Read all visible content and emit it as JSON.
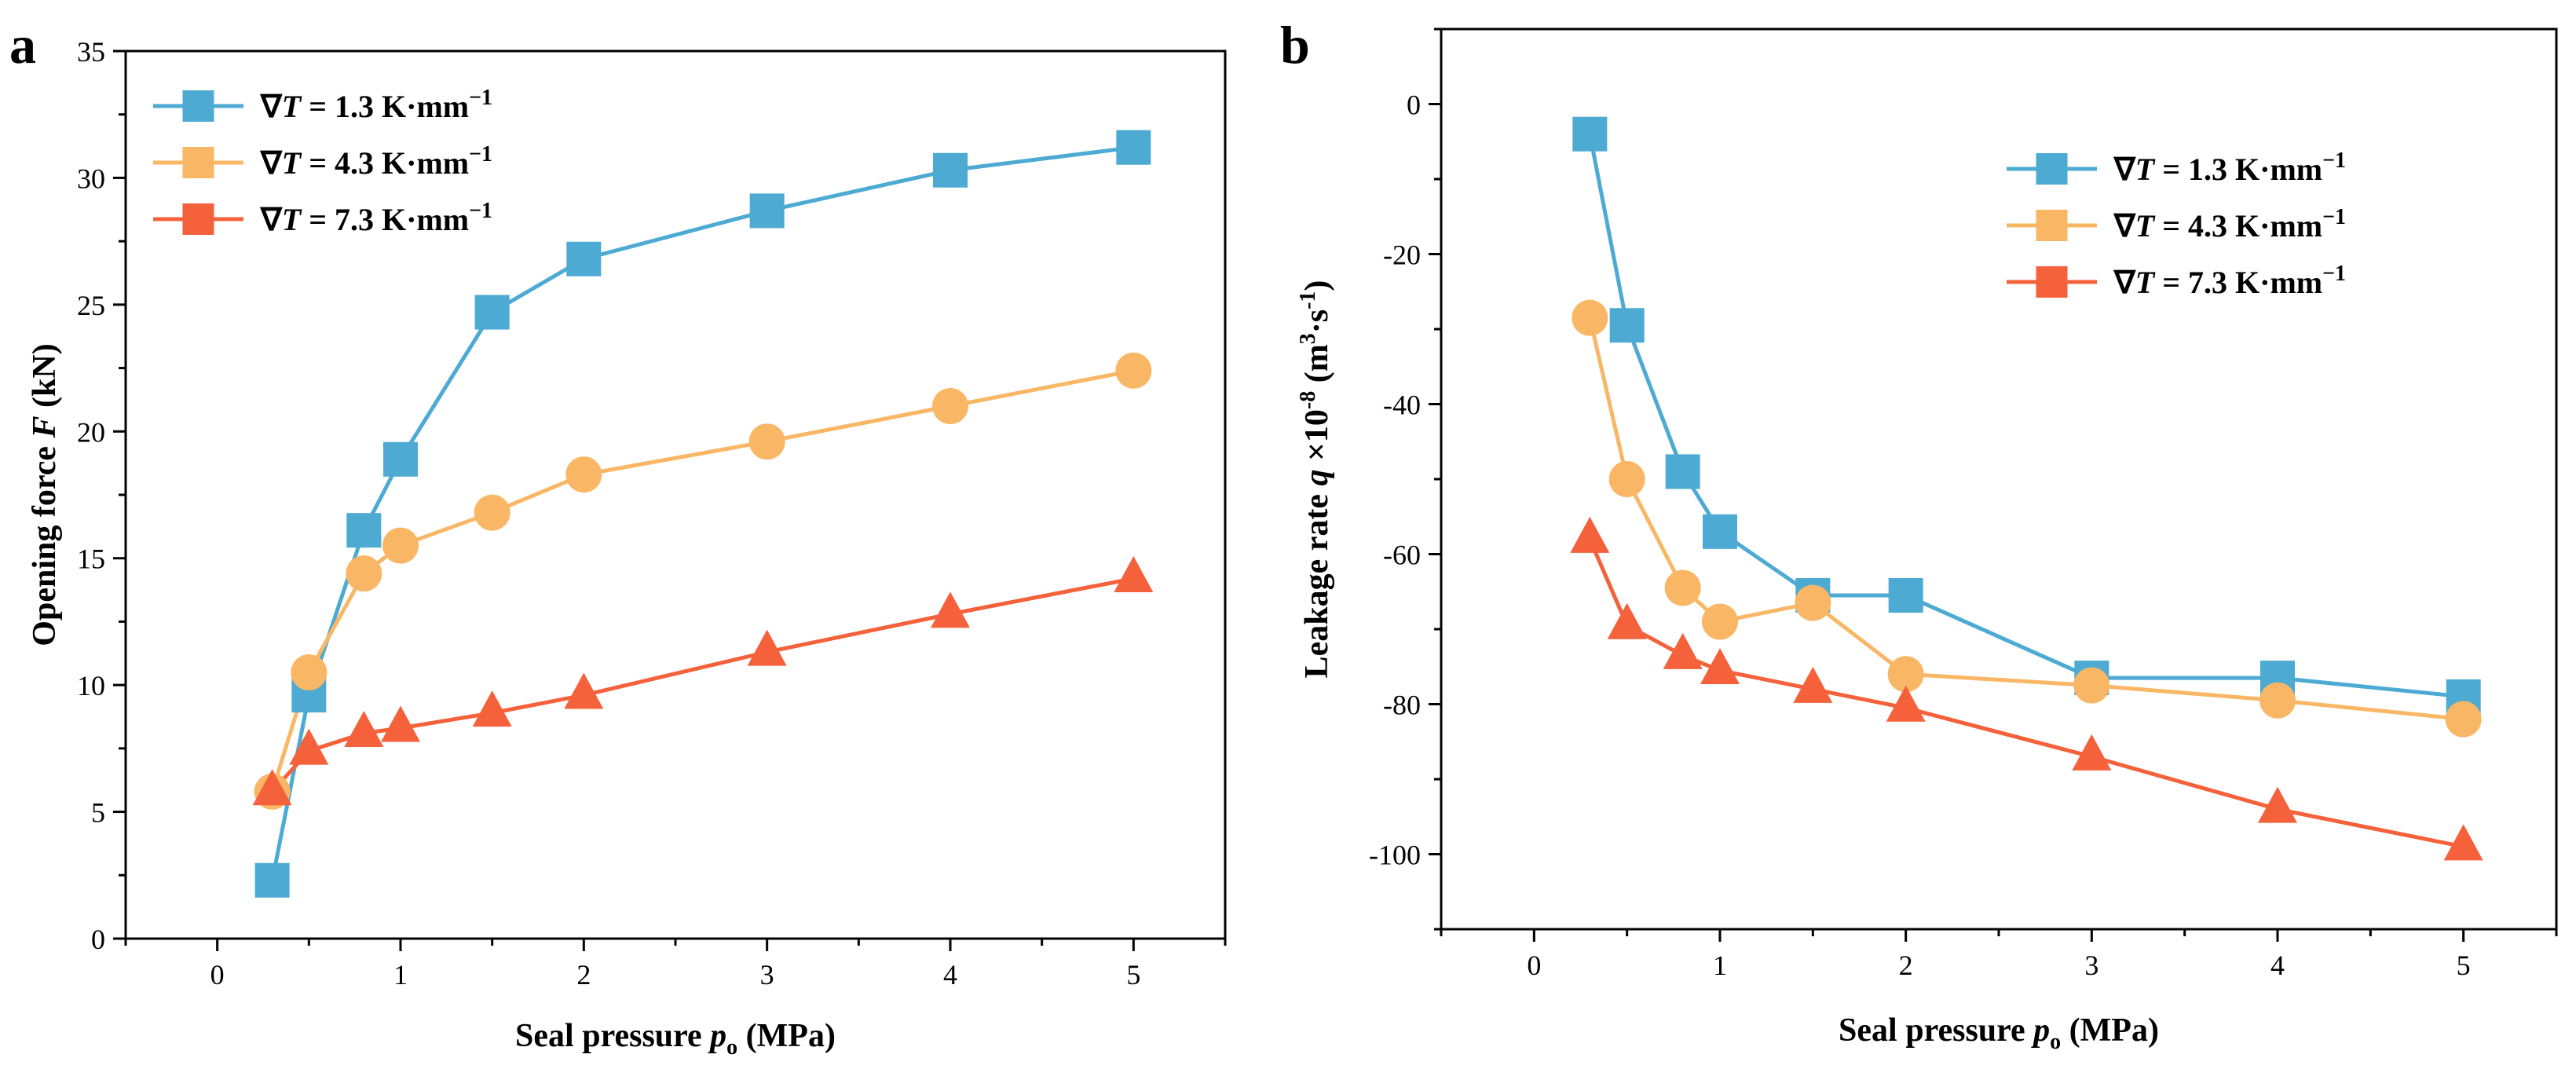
{
  "chart_data": [
    {
      "panel": "a",
      "type": "line",
      "xlabel_pre": "Seal pressure ",
      "xlabel_var": "p",
      "xlabel_sub": "o",
      "xlabel_post": " (MPa)",
      "ylabel_pre": "Opening force ",
      "ylabel_var": "F",
      "ylabel_post": " (kN)",
      "xlim": [
        -0.5,
        5.5
      ],
      "ylim": [
        0,
        35
      ],
      "xticks": [
        0,
        1,
        2,
        3,
        4,
        5
      ],
      "yticks": [
        0,
        5,
        10,
        15,
        20,
        25,
        30,
        35
      ],
      "legend_position": "top-left",
      "x": [
        0.3,
        0.5,
        0.8,
        1.0,
        1.5,
        2.0,
        3.0,
        4.0,
        5.0
      ],
      "series": [
        {
          "name": "∇T = 1.3 K·mm⁻¹",
          "label_grad": "∇",
          "label_T": "T",
          "label_rest": " = 1.3 K·mm",
          "label_exp": "−1",
          "color": "#4CAAD3",
          "marker": "square",
          "values": [
            2.3,
            9.6,
            16.1,
            18.9,
            24.7,
            26.8,
            28.7,
            30.3,
            31.2
          ]
        },
        {
          "name": "∇T = 4.3 K·mm⁻¹",
          "label_grad": "∇",
          "label_T": "T",
          "label_rest": " = 4.3 K·mm",
          "label_exp": "−1",
          "color": "#F9B766",
          "marker": "circle",
          "values": [
            5.8,
            10.5,
            14.4,
            15.5,
            16.8,
            18.3,
            19.6,
            21.0,
            22.4
          ]
        },
        {
          "name": "∇T = 7.3 K·mm⁻¹",
          "label_grad": "∇",
          "label_T": "T",
          "label_rest": " = 7.3 K·mm",
          "label_exp": "−1",
          "color": "#F4613A",
          "marker": "triangle",
          "values": [
            5.8,
            7.4,
            8.1,
            8.3,
            8.9,
            9.6,
            11.3,
            12.8,
            14.2
          ]
        }
      ]
    },
    {
      "panel": "b",
      "type": "line",
      "xlabel_pre": "Seal pressure ",
      "xlabel_var": "p",
      "xlabel_sub": "o",
      "xlabel_post": " (MPa)",
      "ylabel_pre": "Leakage rate ",
      "ylabel_var": "q",
      "ylabel_post": " ×10",
      "ylabel_exp": "-8",
      "ylabel_unit": " (m",
      "ylabel_unit_exp": "3",
      "ylabel_unit_mid": "·s",
      "ylabel_unit_exp2": "-1",
      "ylabel_unit_end": ")",
      "xlim": [
        -0.5,
        5.5
      ],
      "ylim": [
        -110,
        10
      ],
      "xticks": [
        0,
        1,
        2,
        3,
        4,
        5
      ],
      "yticks": [
        0,
        -20,
        -40,
        -60,
        -80,
        -100
      ],
      "legend_position": "top-right",
      "x": [
        0.3,
        0.5,
        0.8,
        1.0,
        1.5,
        2.0,
        3.0,
        4.0,
        5.0
      ],
      "series": [
        {
          "name": "∇T = 1.3 K·mm⁻¹",
          "label_grad": "∇",
          "label_T": "T",
          "label_rest": " = 1.3 K·mm",
          "label_exp": "−1",
          "color": "#4CAAD3",
          "marker": "square",
          "values": [
            -4,
            -29.5,
            -49,
            -57,
            -65.5,
            -65.5,
            -76.5,
            -76.5,
            -79
          ]
        },
        {
          "name": "∇T = 4.3 K·mm⁻¹",
          "label_grad": "∇",
          "label_T": "T",
          "label_rest": " = 4.3 K·mm",
          "label_exp": "−1",
          "color": "#F9B766",
          "marker": "circle",
          "values": [
            -28.5,
            -50,
            -64.5,
            -69,
            -66.5,
            -76,
            -77.5,
            -79.5,
            -82
          ]
        },
        {
          "name": "∇T = 7.3 K·mm⁻¹",
          "label_grad": "∇",
          "label_T": "T",
          "label_rest": " = 7.3 K·mm",
          "label_exp": "−1",
          "color": "#F4613A",
          "marker": "triangle",
          "values": [
            -58,
            -69.5,
            -73.5,
            -75.5,
            -78,
            -80.5,
            -87,
            -94,
            -99
          ]
        }
      ]
    }
  ]
}
